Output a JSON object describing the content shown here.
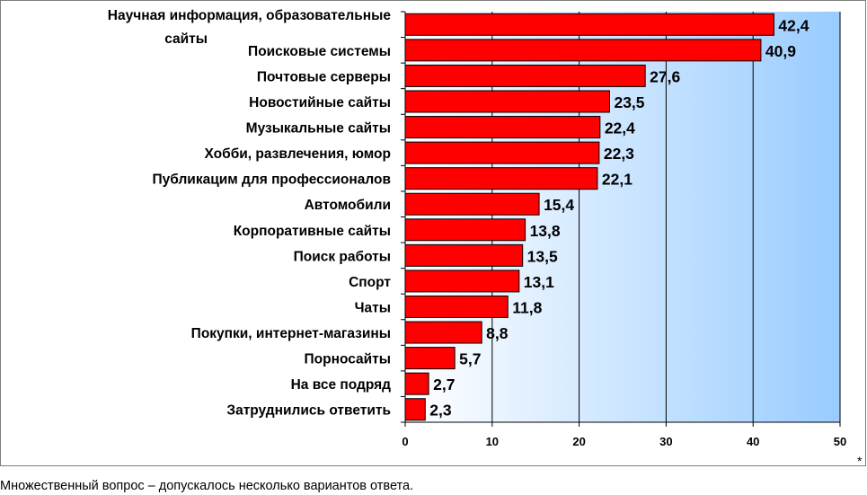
{
  "chart_data": {
    "type": "bar",
    "orientation": "horizontal",
    "categories": [
      "Научная информация, образовательные сайты",
      "Поисковые системы",
      "Почтовые серверы",
      "Новостийные сайты",
      "Музыкальные сайты",
      "Хобби, развлечения, юмор",
      "Публикацим для профессионалов",
      "Автомобили",
      "Корпоративные сайты",
      "Поиск работы",
      "Спорт",
      "Чаты",
      "Покупки, интернет-магазины",
      "Порносайты",
      "На все подряд",
      "Затруднились ответить"
    ],
    "category_lines": [
      [
        "Научная информация, образовательные",
        "сайты"
      ],
      [
        "Поисковые системы"
      ],
      [
        "Почтовые серверы"
      ],
      [
        "Новостийные сайты"
      ],
      [
        "Музыкальные сайты"
      ],
      [
        "Хобби, развлечения, юмор"
      ],
      [
        "Публикацим для профессионалов"
      ],
      [
        "Автомобили"
      ],
      [
        "Корпоративные сайты"
      ],
      [
        "Поиск работы"
      ],
      [
        "Спорт"
      ],
      [
        "Чаты"
      ],
      [
        "Покупки, интернет-магазины"
      ],
      [
        "Порносайты"
      ],
      [
        "На все подряд"
      ],
      [
        "Затруднились ответить"
      ]
    ],
    "values": [
      42.4,
      40.9,
      27.6,
      23.5,
      22.4,
      22.3,
      22.1,
      15.4,
      13.8,
      13.5,
      13.1,
      11.8,
      8.8,
      5.7,
      2.7,
      2.3
    ],
    "value_labels": [
      "42,4",
      "40,9",
      "27,6",
      "23,5",
      "22,4",
      "22,3",
      "22,1",
      "15,4",
      "13,8",
      "13,5",
      "13,1",
      "11,8",
      "8,8",
      "5,7",
      "2,7",
      "2,3"
    ],
    "xlim": [
      0,
      50
    ],
    "xticks": [
      0,
      10,
      20,
      30,
      40,
      50
    ],
    "title": "",
    "xlabel": "",
    "ylabel": "",
    "grid": "vertical",
    "legend": "none",
    "colors": {
      "bar": "#ff0000",
      "bar_outline": "#000000",
      "plot_bg_left": "#ffffff",
      "plot_bg_right": "#99ccff",
      "gridline": "#000000"
    }
  },
  "notes": {
    "asterisk": "*",
    "footnote": "Множественный вопрос – допускалось несколько вариантов ответа."
  }
}
